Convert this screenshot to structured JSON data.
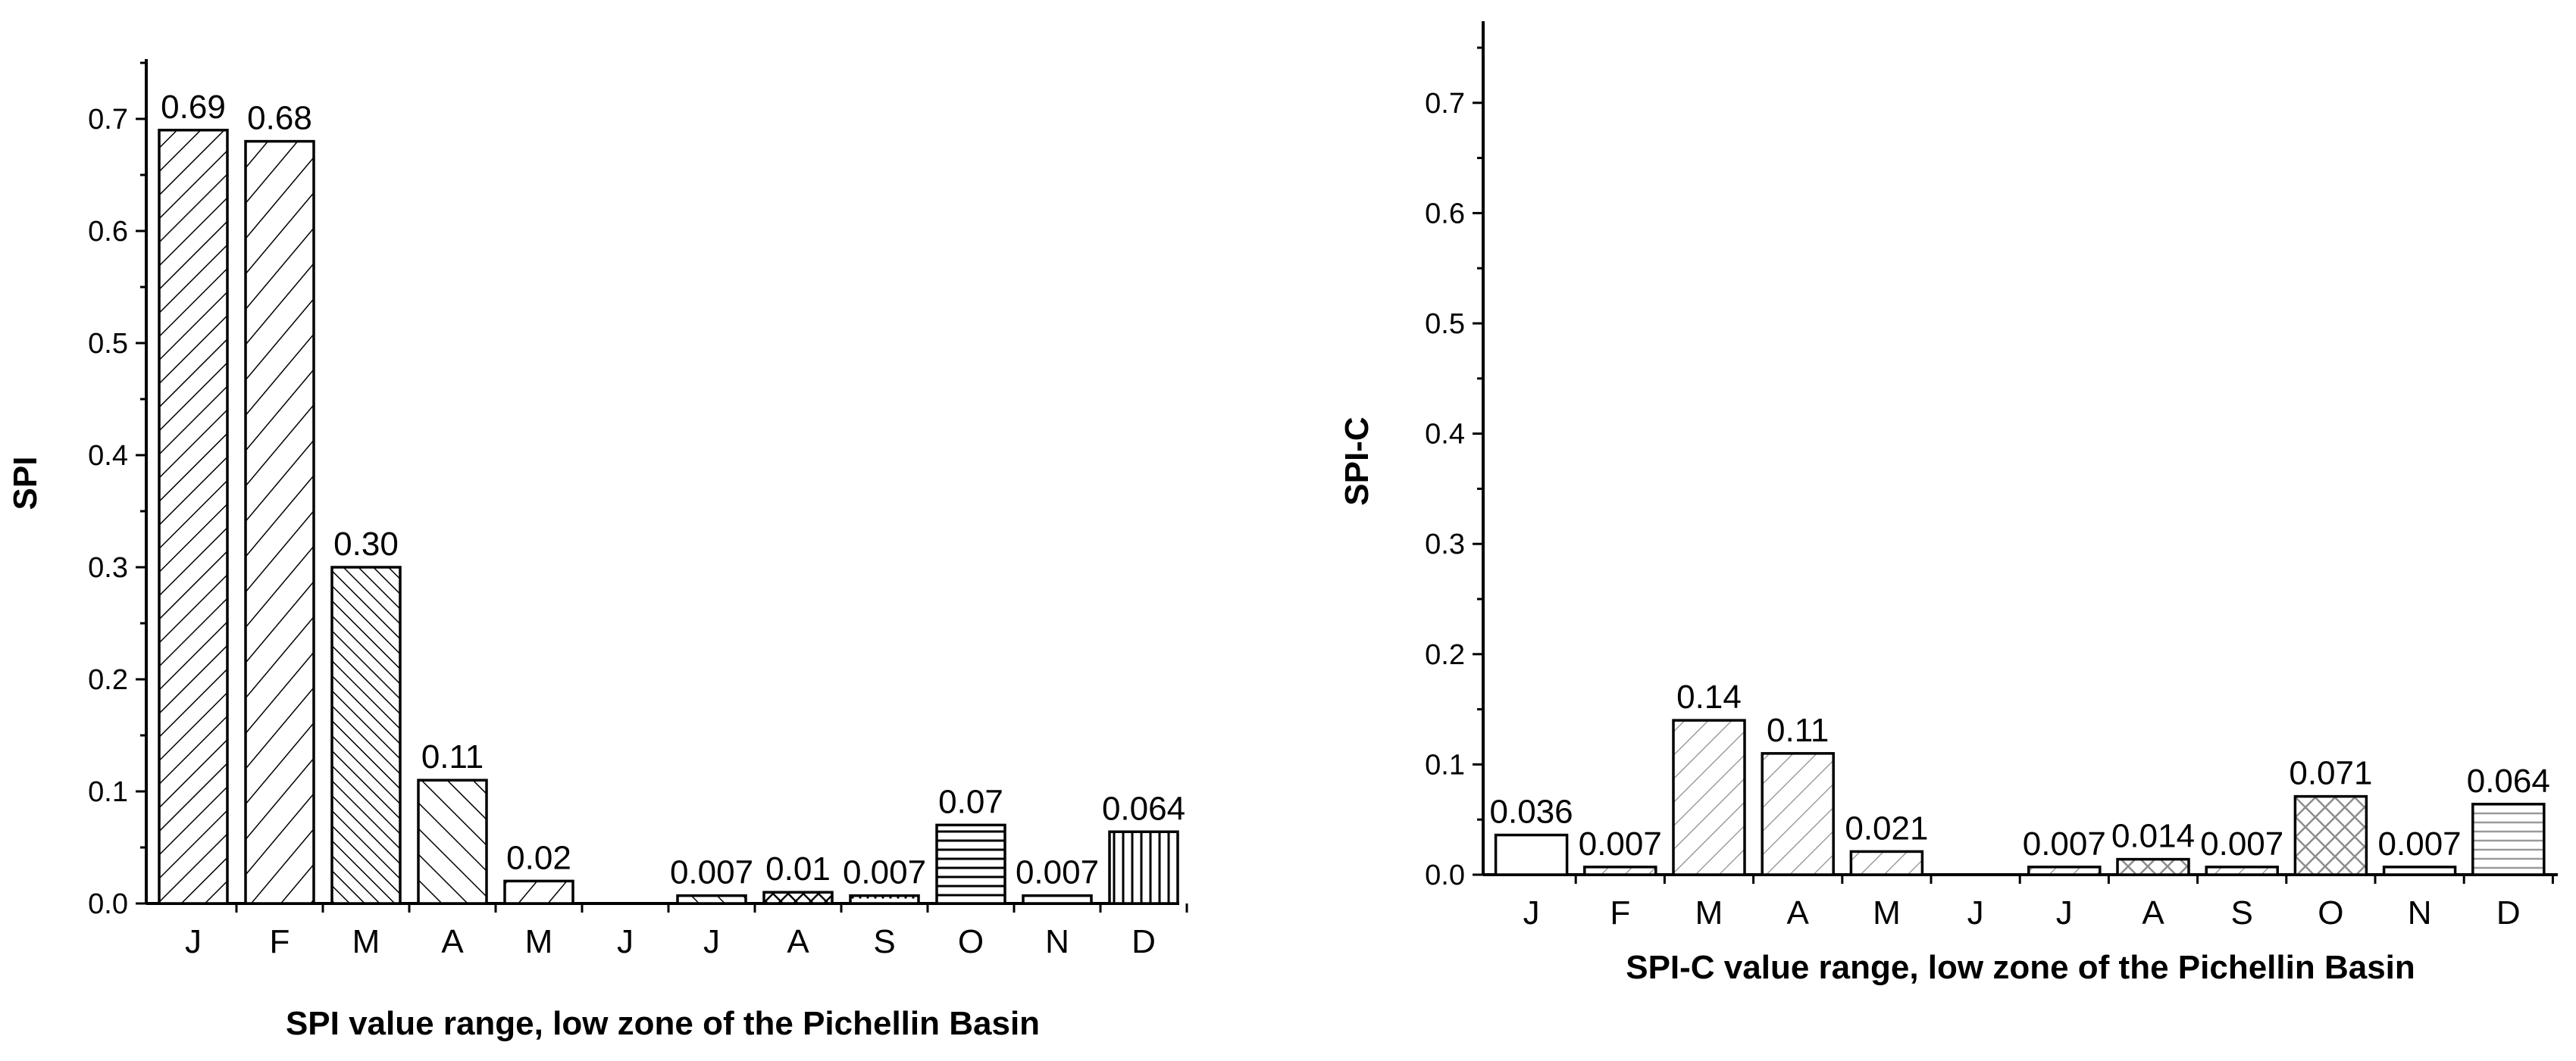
{
  "chart_data": [
    {
      "type": "bar",
      "title": "",
      "xlabel": "SPI value range, low zone of the Pichellin Basin",
      "ylabel": "SPI",
      "ylim": [
        0,
        0.75
      ],
      "yticks": [
        "0.0",
        "0.1",
        "0.2",
        "0.3",
        "0.4",
        "0.5",
        "0.6",
        "0.7"
      ],
      "categories": [
        "J",
        "F",
        "M",
        "A",
        "M",
        "J",
        "J",
        "A",
        "S",
        "O",
        "N",
        "D"
      ],
      "values": [
        0.69,
        0.68,
        0.3,
        0.11,
        0.02,
        0,
        0.007,
        0.01,
        0.007,
        0.07,
        0.007,
        0.064
      ],
      "data_labels": [
        "0.69",
        "0.68",
        "0.30",
        "0.11",
        "0.02",
        "",
        "0.007",
        "0.01",
        "0.007",
        "0.07",
        "0.007",
        "0.064"
      ],
      "patterns": [
        "hatch-fwd-dense",
        "hatch-fwd",
        "hatch-back-dense",
        "hatch-back",
        "hatch-fwd",
        "none",
        "hatch-back",
        "crosshatch",
        "dots",
        "horizontal",
        "none",
        "vertical"
      ],
      "grid": false,
      "legend": "none",
      "bar_color": "#000000"
    },
    {
      "type": "bar",
      "title": "",
      "xlabel": "SPI-C value range, low zone of the Pichellin Basin",
      "ylabel": "SPI-C",
      "ylim": [
        0,
        0.75
      ],
      "yticks": [
        "0.0",
        "0.1",
        "0.2",
        "0.3",
        "0.4",
        "0.5",
        "0.6",
        "0.7"
      ],
      "categories": [
        "J",
        "F",
        "M",
        "A",
        "M",
        "J",
        "J",
        "A",
        "S",
        "O",
        "N",
        "D"
      ],
      "values": [
        0.036,
        0.007,
        0.14,
        0.11,
        0.021,
        0,
        0.007,
        0.014,
        0.007,
        0.071,
        0.007,
        0.064
      ],
      "data_labels": [
        "0.036",
        "0.007",
        "0.14",
        "0.11",
        "0.021",
        "",
        "0.007",
        "0.014",
        "0.007",
        "0.071",
        "0.007",
        "0.064"
      ],
      "patterns": [
        "none",
        "gray-fwd",
        "gray-fwd",
        "gray-fwd",
        "gray-fwd",
        "none",
        "gray-fwd",
        "gray-cross",
        "gray-fwd",
        "gray-cross",
        "none",
        "gray-horizontal"
      ],
      "grid": false,
      "legend": "none",
      "bar_color": "#000000"
    }
  ]
}
